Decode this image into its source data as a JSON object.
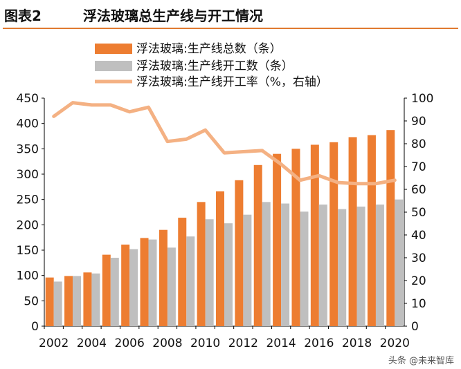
{
  "header": {
    "figure_number": "图表2",
    "title": "浮法玻璃总生产线与开工情况"
  },
  "watermark": "头条 @未来智库",
  "colors": {
    "total": "#ED7D31",
    "operating": "#BFBFBF",
    "rate": "#F4B183",
    "rule": "#E07A30"
  },
  "chart_data": {
    "type": "bar",
    "title": "浮法玻璃总生产线与开工情况",
    "categories": [
      "2002",
      "2003",
      "2004",
      "2005",
      "2006",
      "2007",
      "2008",
      "2009",
      "2010",
      "2011",
      "2012",
      "2013",
      "2014",
      "2015",
      "2016",
      "2017",
      "2018",
      "2019",
      "2020"
    ],
    "x_tick_labels": [
      "2002",
      "2004",
      "2006",
      "2008",
      "2010",
      "2012",
      "2014",
      "2016",
      "2018",
      "2020"
    ],
    "series": [
      {
        "name": "浮法玻璃:生产线总数（条）",
        "kind": "bar",
        "axis": "left",
        "values": [
          96,
          99,
          106,
          141,
          161,
          174,
          190,
          214,
          245,
          266,
          288,
          318,
          340,
          350,
          358,
          363,
          373,
          377,
          387
        ]
      },
      {
        "name": "浮法玻璃:生产线开工数（条）",
        "kind": "bar",
        "axis": "left",
        "values": [
          88,
          99,
          104,
          135,
          152,
          171,
          155,
          177,
          211,
          203,
          220,
          245,
          242,
          226,
          240,
          231,
          236,
          240,
          250
        ]
      },
      {
        "name": "浮法玻璃:生产线开工率（%，右轴）",
        "kind": "line",
        "axis": "right",
        "values": [
          92,
          98,
          97,
          97,
          94,
          96,
          81,
          82,
          86,
          76,
          76.5,
          77,
          71,
          64,
          66,
          63,
          62.5,
          62.5,
          64
        ]
      }
    ],
    "left_axis": {
      "min": 0,
      "max": 450,
      "step": 50,
      "tick_labels": [
        "0",
        "50",
        "100",
        "150",
        "200",
        "250",
        "300",
        "350",
        "400",
        "450"
      ]
    },
    "right_axis": {
      "min": 0,
      "max": 100,
      "step": 10,
      "tick_labels": [
        "0",
        "10",
        "20",
        "30",
        "40",
        "50",
        "60",
        "70",
        "80",
        "90",
        "100"
      ]
    },
    "legend_position": "top",
    "grid": false
  }
}
